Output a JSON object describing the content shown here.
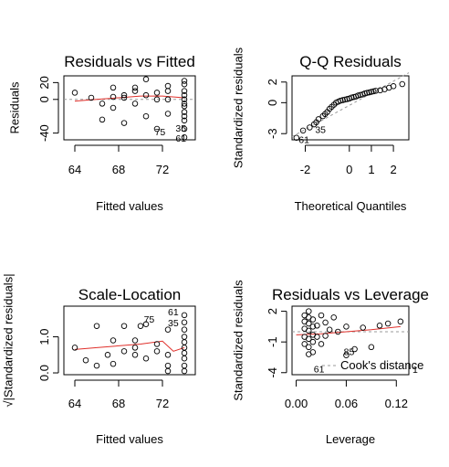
{
  "chart_data": [
    {
      "type": "scatter",
      "title": "Residuals vs Fitted",
      "xlabel": "Fitted values",
      "ylabel": "Residuals",
      "xlim": [
        63,
        75
      ],
      "ylim": [
        -48,
        28
      ],
      "xticks": [
        64,
        68,
        72
      ],
      "yticks": [
        -40,
        0,
        20
      ],
      "x": [
        64,
        65.5,
        66.5,
        66.5,
        67.5,
        67.5,
        67.5,
        68.5,
        68.5,
        68.5,
        69.5,
        69.5,
        69.5,
        70.5,
        70.5,
        70.5,
        71.5,
        71.5,
        71.5,
        72.5,
        72.5,
        72.5,
        72.5,
        74,
        74,
        74,
        74,
        74,
        74,
        74,
        74,
        74,
        74,
        74,
        74
      ],
      "y": [
        8,
        2,
        -5,
        -24,
        3,
        14,
        -10,
        2,
        5,
        -28,
        10,
        14,
        -5,
        24,
        5,
        -20,
        8,
        0,
        -35,
        16,
        10,
        0,
        -17,
        22,
        18,
        10,
        5,
        0,
        -5,
        -8,
        -15,
        -20,
        -25,
        -35,
        -45
      ],
      "labels": [
        {
          "text": "75",
          "x": 71.3,
          "y": -38
        },
        {
          "text": "35",
          "x": 73.2,
          "y": -34
        },
        {
          "text": "61",
          "x": 73.2,
          "y": -46
        }
      ],
      "smoother": {
        "x": [
          64,
          66,
          68,
          70,
          72,
          74
        ],
        "y": [
          -2,
          0,
          2,
          4,
          4,
          2
        ]
      },
      "reference_line": 0,
      "grid": false
    },
    {
      "type": "scatter",
      "title": "Q-Q Residuals",
      "xlabel": "Theoretical Quantiles",
      "ylabel": "Standardized residuals",
      "xlim": [
        -2.6,
        2.7
      ],
      "ylim": [
        -3.6,
        2.6
      ],
      "xticks": [
        -2,
        0,
        1,
        2
      ],
      "yticks": [
        -3,
        0,
        2
      ],
      "x": [
        -2.4,
        -2.1,
        -1.8,
        -1.6,
        -1.5,
        -1.4,
        -1.2,
        -1.1,
        -1.0,
        -0.9,
        -0.8,
        -0.7,
        -0.6,
        -0.5,
        -0.4,
        -0.3,
        -0.2,
        -0.1,
        0.0,
        0.1,
        0.2,
        0.3,
        0.4,
        0.5,
        0.6,
        0.7,
        0.8,
        0.9,
        1.0,
        1.1,
        1.2,
        1.4,
        1.6,
        1.8,
        2.0,
        2.4
      ],
      "y": [
        -3.4,
        -2.7,
        -2.4,
        -2.1,
        -1.9,
        -1.6,
        -1.3,
        -1.1,
        -0.9,
        -0.6,
        -0.4,
        -0.2,
        0.0,
        0.1,
        0.2,
        0.25,
        0.3,
        0.35,
        0.4,
        0.5,
        0.55,
        0.6,
        0.7,
        0.75,
        0.8,
        0.9,
        0.95,
        1.0,
        1.05,
        1.1,
        1.15,
        1.2,
        1.3,
        1.45,
        1.6,
        1.8
      ],
      "labels": [
        {
          "text": "61",
          "x": -2.3,
          "y": -3.55
        },
        {
          "text": "35",
          "x": -1.55,
          "y": -2.6
        }
      ],
      "reference_line": {
        "x": [
          -2.6,
          2.7
        ],
        "y": [
          -3.3,
          2.9
        ]
      },
      "grid": false
    },
    {
      "type": "scatter",
      "title": "Scale-Location",
      "xlabel": "Fitted values",
      "ylabel": "√|Standardized residuals|",
      "xlim": [
        63,
        75
      ],
      "ylim": [
        -0.05,
        1.85
      ],
      "xticks": [
        64,
        68,
        72
      ],
      "yticks": [
        0.0,
        1.0
      ],
      "x": [
        64,
        65,
        66,
        66,
        67,
        67.5,
        67.5,
        68.5,
        68.5,
        69.5,
        69.5,
        69.5,
        70,
        70.5,
        70.5,
        71.5,
        71.5,
        72.5,
        72.5,
        72.5,
        72.5,
        74,
        74,
        74,
        74,
        74,
        74,
        74,
        74,
        74,
        74
      ],
      "y": [
        0.7,
        0.35,
        1.3,
        0.2,
        0.5,
        0.9,
        0.25,
        1.3,
        0.6,
        0.5,
        0.7,
        0.9,
        1.3,
        0.4,
        1.35,
        0.8,
        0.6,
        1.2,
        0.5,
        0.2,
        0.05,
        1.6,
        1.4,
        1.2,
        1.0,
        0.85,
        0.7,
        0.55,
        0.4,
        0.2,
        0.05
      ],
      "labels": [
        {
          "text": "75",
          "x": 70.3,
          "y": 1.5
        },
        {
          "text": "61",
          "x": 72.5,
          "y": 1.7
        },
        {
          "text": "35",
          "x": 72.5,
          "y": 1.4
        }
      ],
      "smoother": {
        "x": [
          64,
          66,
          68,
          70,
          72,
          73,
          74
        ],
        "y": [
          0.65,
          0.7,
          0.75,
          0.8,
          0.88,
          0.6,
          0.7
        ]
      },
      "grid": false
    },
    {
      "type": "scatter",
      "title": "Residuals vs Leverage",
      "xlabel": "Leverage",
      "ylabel": "Standardized residuals",
      "xlim": [
        -0.005,
        0.135
      ],
      "ylim": [
        -4.2,
        2.5
      ],
      "xticks": [
        0.0,
        0.06,
        0.12
      ],
      "yticks": [
        -4,
        -1,
        2
      ],
      "x": [
        0.01,
        0.01,
        0.01,
        0.01,
        0.01,
        0.015,
        0.015,
        0.015,
        0.015,
        0.015,
        0.015,
        0.015,
        0.02,
        0.02,
        0.02,
        0.02,
        0.02,
        0.025,
        0.025,
        0.03,
        0.03,
        0.035,
        0.035,
        0.04,
        0.045,
        0.05,
        0.06,
        0.06,
        0.07,
        0.08,
        0.09,
        0.1,
        0.11,
        0.125
      ],
      "y": [
        1.6,
        1.0,
        0.3,
        -0.5,
        -1.2,
        2.0,
        1.4,
        0.8,
        0.1,
        -0.7,
        -1.5,
        -2.2,
        1.2,
        0.5,
        -0.3,
        -1.0,
        -2.0,
        0.6,
        -0.5,
        1.6,
        -1.2,
        0.9,
        -0.4,
        0.2,
        1.4,
        0.0,
        0.5,
        -2.3,
        -1.7,
        0.4,
        -1.5,
        0.6,
        0.8,
        1.0
      ],
      "labels": [
        {
          "text": "61",
          "x": 0.021,
          "y": -3.6
        },
        {
          "text": "85",
          "x": 0.057,
          "y": -1.9
        }
      ],
      "smoother": {
        "x": [
          0.0,
          0.03,
          0.06,
          0.09,
          0.125
        ],
        "y": [
          -0.3,
          -0.2,
          0.0,
          0.2,
          0.5
        ]
      },
      "legend": {
        "text": "Cook's distance",
        "position": "bottom-right"
      },
      "cooks_label": "1",
      "reference_line": 0,
      "grid": false
    }
  ]
}
